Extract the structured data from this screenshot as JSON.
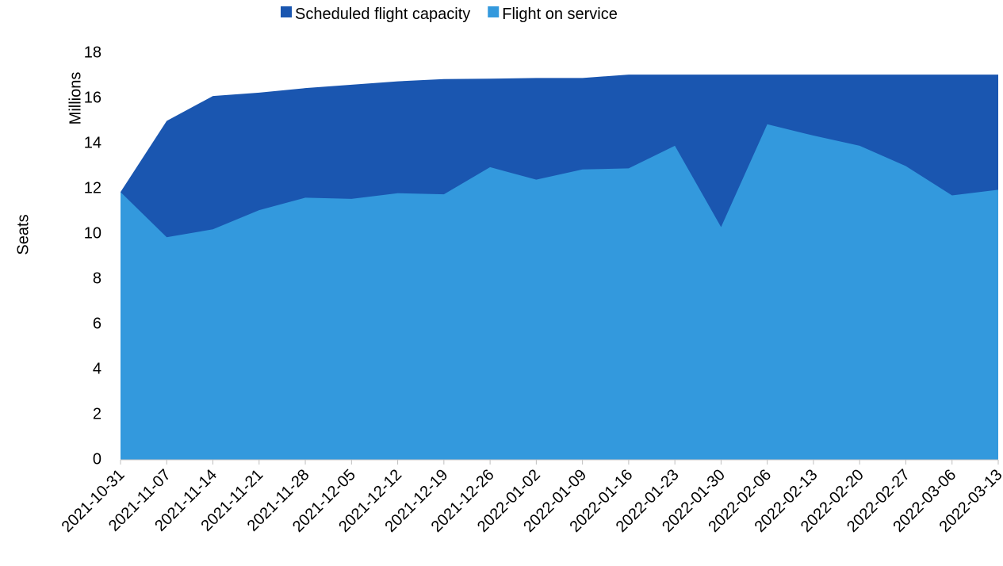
{
  "chart_data": {
    "type": "area",
    "y_axis_label": "Seats",
    "y_units_label": "Millions",
    "categories": [
      "2021-10-31",
      "2021-11-07",
      "2021-11-14",
      "2021-11-21",
      "2021-11-28",
      "2021-12-05",
      "2021-12-12",
      "2021-12-19",
      "2021-12-26",
      "2022-01-02",
      "2022-01-09",
      "2022-01-16",
      "2022-01-23",
      "2022-01-30",
      "2022-02-06",
      "2022-02-13",
      "2022-02-20",
      "2022-02-27",
      "2022-03-06",
      "2022-03-13"
    ],
    "series": [
      {
        "name": "Scheduled flight capacity",
        "color": "#1a56b0",
        "values": [
          11.85,
          15.0,
          16.1,
          16.25,
          16.45,
          16.6,
          16.75,
          16.85,
          16.87,
          16.9,
          16.9,
          17.05,
          17.05,
          17.05,
          17.05,
          17.05,
          17.05,
          17.05,
          17.05,
          17.05
        ]
      },
      {
        "name": "Flight on service",
        "color": "#3399dd",
        "values": [
          11.85,
          9.85,
          10.2,
          11.05,
          11.6,
          11.55,
          11.8,
          11.75,
          12.95,
          12.4,
          12.85,
          12.9,
          13.9,
          10.3,
          14.85,
          14.35,
          13.9,
          13.0,
          11.7,
          11.95
        ]
      }
    ],
    "ylim": [
      0,
      18
    ],
    "yticks": [
      0,
      2,
      4,
      6,
      8,
      10,
      12,
      14,
      16,
      18
    ],
    "grid": false,
    "legend": "top"
  }
}
